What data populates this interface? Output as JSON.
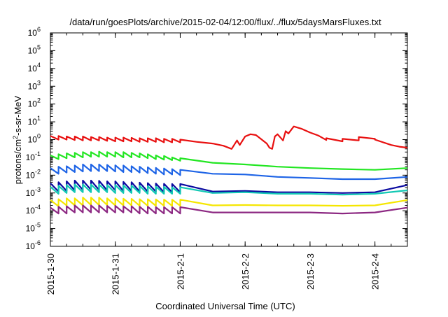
{
  "chart_data": {
    "type": "line",
    "title": "/data/run/goesPlots/archive/2015-02-04/12:00/flux/../flux/5daysMarsFluxes.txt",
    "xlabel": "Coordinated Universal Time (UTC)",
    "ylabel_parts": {
      "base": "protons/cm",
      "sup": "2",
      "rest": "-s-sr-MeV"
    },
    "y_scale": "log",
    "ylim": [
      1e-06,
      1000000.0
    ],
    "y_ticks": [
      {
        "value": 1000000.0,
        "base": "10",
        "exp": "6"
      },
      {
        "value": 100000.0,
        "base": "10",
        "exp": "5"
      },
      {
        "value": 10000.0,
        "base": "10",
        "exp": "4"
      },
      {
        "value": 1000.0,
        "base": "10",
        "exp": "3"
      },
      {
        "value": 100.0,
        "base": "10",
        "exp": "2"
      },
      {
        "value": 10.0,
        "base": "10",
        "exp": "1"
      },
      {
        "value": 1.0,
        "base": "10",
        "exp": "0"
      },
      {
        "value": 0.1,
        "base": "10",
        "exp": "-1"
      },
      {
        "value": 0.01,
        "base": "10",
        "exp": "-2"
      },
      {
        "value": 0.001,
        "base": "10",
        "exp": "-3"
      },
      {
        "value": 0.0001,
        "base": "10",
        "exp": "-4"
      },
      {
        "value": 1e-05,
        "base": "10",
        "exp": "-5"
      },
      {
        "value": 1e-06,
        "base": "10",
        "exp": "-6"
      }
    ],
    "xlim": [
      "2015-01-30T00:00",
      "2015-02-04T12:00"
    ],
    "x_ticks": [
      {
        "value": "2015-01-30T00:00",
        "label": "2015-1-30"
      },
      {
        "value": "2015-01-31T00:00",
        "label": "2015-1-31"
      },
      {
        "value": "2015-02-01T00:00",
        "label": "2015-2-1"
      },
      {
        "value": "2015-02-02T00:00",
        "label": "2015-2-2"
      },
      {
        "value": "2015-02-03T00:00",
        "label": "2015-2-3"
      },
      {
        "value": "2015-02-04T00:00",
        "label": "2015-2-4"
      }
    ],
    "grid": false,
    "legend": "none",
    "series": [
      {
        "color": "#e81010",
        "x": [
          "2015-01-30T00:00",
          "2015-01-30T03:00",
          "2015-01-30T03:00",
          "2015-01-30T06:00",
          "2015-01-30T06:00",
          "2015-01-30T09:00",
          "2015-01-30T09:00",
          "2015-01-30T12:00",
          "2015-01-30T12:00",
          "2015-01-30T15:00",
          "2015-01-30T15:00",
          "2015-01-30T18:00",
          "2015-01-30T18:00",
          "2015-01-30T21:00",
          "2015-01-30T21:00",
          "2015-01-31T00:00",
          "2015-01-31T00:00",
          "2015-01-31T03:00",
          "2015-01-31T03:00",
          "2015-01-31T06:00",
          "2015-01-31T06:00",
          "2015-01-31T09:00",
          "2015-01-31T09:00",
          "2015-01-31T12:00",
          "2015-01-31T12:00",
          "2015-01-31T15:00",
          "2015-01-31T15:00",
          "2015-01-31T18:00",
          "2015-01-31T18:00",
          "2015-01-31T21:00",
          "2015-01-31T21:00",
          "2015-02-01T00:00",
          "2015-02-01T00:00",
          "2015-02-01T06:00",
          "2015-02-01T12:00",
          "2015-02-01T16:00",
          "2015-02-01T19:00",
          "2015-02-01T21:00",
          "2015-02-01T22:00",
          "2015-02-02T00:00",
          "2015-02-02T02:00",
          "2015-02-02T04:00",
          "2015-02-02T05:30",
          "2015-02-02T08:00",
          "2015-02-02T09:00",
          "2015-02-02T10:00",
          "2015-02-02T11:00",
          "2015-02-02T12:00",
          "2015-02-02T14:00",
          "2015-02-02T15:00",
          "2015-02-02T16:00",
          "2015-02-02T18:00",
          "2015-02-02T21:00",
          "2015-02-03T00:00",
          "2015-02-03T03:00",
          "2015-02-03T06:00",
          "2015-02-03T06:00",
          "2015-02-03T12:00",
          "2015-02-03T12:00",
          "2015-02-03T18:00",
          "2015-02-03T18:00",
          "2015-02-04T00:00",
          "2015-02-04T00:00",
          "2015-02-04T06:00",
          "2015-02-04T09:00",
          "2015-02-04T12:00"
        ],
        "y": [
          1.6,
          1.0,
          1.6,
          1.0,
          1.5,
          0.95,
          1.5,
          0.9,
          1.5,
          0.9,
          1.4,
          0.9,
          1.4,
          0.85,
          1.3,
          0.8,
          1.3,
          0.8,
          1.3,
          0.8,
          1.25,
          0.75,
          1.2,
          0.75,
          1.2,
          0.75,
          1.2,
          0.7,
          1.1,
          0.7,
          1.1,
          0.7,
          1.0,
          0.75,
          0.6,
          0.45,
          0.3,
          0.9,
          0.5,
          1.5,
          2.0,
          1.8,
          1.2,
          0.6,
          0.35,
          0.3,
          1.5,
          2.0,
          0.9,
          3.0,
          2.2,
          5.5,
          4.0,
          2.5,
          1.7,
          0.95,
          1.2,
          0.8,
          1.1,
          0.9,
          1.4,
          1.1,
          1.0,
          0.5,
          0.4,
          0.35
        ]
      },
      {
        "color": "#22e622",
        "x": [
          "2015-01-30T00:00",
          "2015-01-30T03:00",
          "2015-01-30T03:00",
          "2015-01-30T06:00",
          "2015-01-30T06:00",
          "2015-01-30T09:00",
          "2015-01-30T09:00",
          "2015-01-30T12:00",
          "2015-01-30T12:00",
          "2015-01-30T15:00",
          "2015-01-30T15:00",
          "2015-01-30T18:00",
          "2015-01-30T18:00",
          "2015-01-30T21:00",
          "2015-01-30T21:00",
          "2015-01-31T00:00",
          "2015-01-31T00:00",
          "2015-01-31T03:00",
          "2015-01-31T03:00",
          "2015-01-31T06:00",
          "2015-01-31T06:00",
          "2015-01-31T09:00",
          "2015-01-31T09:00",
          "2015-01-31T12:00",
          "2015-01-31T12:00",
          "2015-01-31T15:00",
          "2015-01-31T15:00",
          "2015-01-31T18:00",
          "2015-01-31T18:00",
          "2015-01-31T21:00",
          "2015-01-31T21:00",
          "2015-02-01T00:00",
          "2015-02-01T00:00",
          "2015-02-01T12:00",
          "2015-02-02T00:00",
          "2015-02-02T12:00",
          "2015-02-03T00:00",
          "2015-02-03T12:00",
          "2015-02-04T00:00",
          "2015-02-04T12:00"
        ],
        "y": [
          0.13,
          0.08,
          0.15,
          0.09,
          0.17,
          0.1,
          0.18,
          0.1,
          0.2,
          0.11,
          0.2,
          0.11,
          0.21,
          0.11,
          0.2,
          0.11,
          0.2,
          0.1,
          0.2,
          0.1,
          0.18,
          0.1,
          0.17,
          0.09,
          0.15,
          0.08,
          0.13,
          0.075,
          0.12,
          0.07,
          0.1,
          0.065,
          0.09,
          0.05,
          0.04,
          0.03,
          0.025,
          0.022,
          0.02,
          0.025
        ]
      },
      {
        "color": "#1e64e6",
        "x": [
          "2015-01-30T00:00",
          "2015-01-30T03:00",
          "2015-01-30T03:00",
          "2015-01-30T06:00",
          "2015-01-30T06:00",
          "2015-01-30T09:00",
          "2015-01-30T09:00",
          "2015-01-30T12:00",
          "2015-01-30T12:00",
          "2015-01-30T15:00",
          "2015-01-30T15:00",
          "2015-01-30T18:00",
          "2015-01-30T18:00",
          "2015-01-30T21:00",
          "2015-01-30T21:00",
          "2015-01-31T00:00",
          "2015-01-31T00:00",
          "2015-01-31T03:00",
          "2015-01-31T03:00",
          "2015-01-31T06:00",
          "2015-01-31T06:00",
          "2015-01-31T09:00",
          "2015-01-31T09:00",
          "2015-01-31T12:00",
          "2015-01-31T12:00",
          "2015-01-31T15:00",
          "2015-01-31T15:00",
          "2015-01-31T18:00",
          "2015-01-31T18:00",
          "2015-01-31T21:00",
          "2015-01-31T21:00",
          "2015-02-01T00:00",
          "2015-02-01T00:00",
          "2015-02-01T12:00",
          "2015-02-02T00:00",
          "2015-02-02T12:00",
          "2015-02-03T00:00",
          "2015-02-03T12:00",
          "2015-02-04T00:00",
          "2015-02-04T12:00"
        ],
        "y": [
          0.025,
          0.012,
          0.03,
          0.014,
          0.032,
          0.015,
          0.035,
          0.016,
          0.04,
          0.017,
          0.04,
          0.017,
          0.04,
          0.017,
          0.038,
          0.016,
          0.036,
          0.015,
          0.035,
          0.015,
          0.032,
          0.014,
          0.03,
          0.013,
          0.028,
          0.012,
          0.026,
          0.011,
          0.024,
          0.011,
          0.022,
          0.01,
          0.02,
          0.012,
          0.011,
          0.008,
          0.007,
          0.006,
          0.006,
          0.008
        ]
      },
      {
        "color": "#0a0aa0",
        "x": [
          "2015-01-30T00:00",
          "2015-01-30T03:00",
          "2015-01-30T03:00",
          "2015-01-30T06:00",
          "2015-01-30T06:00",
          "2015-01-30T09:00",
          "2015-01-30T09:00",
          "2015-01-30T12:00",
          "2015-01-30T12:00",
          "2015-01-30T15:00",
          "2015-01-30T15:00",
          "2015-01-30T18:00",
          "2015-01-30T18:00",
          "2015-01-30T21:00",
          "2015-01-30T21:00",
          "2015-01-31T00:00",
          "2015-01-31T00:00",
          "2015-01-31T03:00",
          "2015-01-31T03:00",
          "2015-01-31T06:00",
          "2015-01-31T06:00",
          "2015-01-31T09:00",
          "2015-01-31T09:00",
          "2015-01-31T12:00",
          "2015-01-31T12:00",
          "2015-01-31T15:00",
          "2015-01-31T15:00",
          "2015-01-31T18:00",
          "2015-01-31T18:00",
          "2015-01-31T21:00",
          "2015-01-31T21:00",
          "2015-02-01T00:00",
          "2015-02-01T00:00",
          "2015-02-01T12:00",
          "2015-02-02T00:00",
          "2015-02-02T12:00",
          "2015-02-03T00:00",
          "2015-02-03T12:00",
          "2015-02-04T00:00",
          "2015-02-04T12:00"
        ],
        "y": [
          0.0035,
          0.0012,
          0.004,
          0.0013,
          0.0045,
          0.0014,
          0.005,
          0.0015,
          0.005,
          0.0015,
          0.005,
          0.0015,
          0.0048,
          0.0014,
          0.0045,
          0.0014,
          0.0045,
          0.0013,
          0.0042,
          0.0013,
          0.004,
          0.0012,
          0.0038,
          0.0012,
          0.0036,
          0.0012,
          0.0034,
          0.0011,
          0.0033,
          0.0011,
          0.0032,
          0.0011,
          0.0032,
          0.0012,
          0.0013,
          0.0011,
          0.0011,
          0.001,
          0.0011,
          0.0028
        ]
      },
      {
        "color": "#12c8b4",
        "x": [
          "2015-01-30T00:00",
          "2015-01-30T03:00",
          "2015-01-30T03:00",
          "2015-01-30T06:00",
          "2015-01-30T06:00",
          "2015-01-30T09:00",
          "2015-01-30T09:00",
          "2015-01-30T12:00",
          "2015-01-30T12:00",
          "2015-01-30T15:00",
          "2015-01-30T15:00",
          "2015-01-30T18:00",
          "2015-01-30T18:00",
          "2015-01-30T21:00",
          "2015-01-30T21:00",
          "2015-01-31T00:00",
          "2015-01-31T00:00",
          "2015-01-31T03:00",
          "2015-01-31T03:00",
          "2015-01-31T06:00",
          "2015-01-31T06:00",
          "2015-01-31T09:00",
          "2015-01-31T09:00",
          "2015-01-31T12:00",
          "2015-01-31T12:00",
          "2015-01-31T15:00",
          "2015-01-31T15:00",
          "2015-01-31T18:00",
          "2015-01-31T18:00",
          "2015-01-31T21:00",
          "2015-01-31T21:00",
          "2015-02-01T00:00",
          "2015-02-01T00:00",
          "2015-02-01T12:00",
          "2015-02-02T00:00",
          "2015-02-02T12:00",
          "2015-02-03T00:00",
          "2015-02-03T12:00",
          "2015-02-04T00:00",
          "2015-02-04T12:00"
        ],
        "y": [
          0.0022,
          0.0009,
          0.0025,
          0.001,
          0.0028,
          0.0011,
          0.003,
          0.0011,
          0.003,
          0.0011,
          0.003,
          0.0011,
          0.003,
          0.0011,
          0.0028,
          0.001,
          0.0028,
          0.001,
          0.0027,
          0.001,
          0.0026,
          0.001,
          0.0025,
          0.0009,
          0.0024,
          0.0009,
          0.0023,
          0.0009,
          0.0022,
          0.0009,
          0.0021,
          0.0009,
          0.0021,
          0.001,
          0.0011,
          0.0009,
          0.0009,
          0.0008,
          0.0009,
          0.0014
        ]
      },
      {
        "color": "#f5e600",
        "x": [
          "2015-01-30T00:00",
          "2015-01-30T03:00",
          "2015-01-30T03:00",
          "2015-01-30T06:00",
          "2015-01-30T06:00",
          "2015-01-30T09:00",
          "2015-01-30T09:00",
          "2015-01-30T12:00",
          "2015-01-30T12:00",
          "2015-01-30T15:00",
          "2015-01-30T15:00",
          "2015-01-30T18:00",
          "2015-01-30T18:00",
          "2015-01-30T21:00",
          "2015-01-30T21:00",
          "2015-01-31T00:00",
          "2015-01-31T00:00",
          "2015-01-31T03:00",
          "2015-01-31T03:00",
          "2015-01-31T06:00",
          "2015-01-31T06:00",
          "2015-01-31T09:00",
          "2015-01-31T09:00",
          "2015-01-31T12:00",
          "2015-01-31T12:00",
          "2015-01-31T15:00",
          "2015-01-31T15:00",
          "2015-01-31T18:00",
          "2015-01-31T18:00",
          "2015-01-31T21:00",
          "2015-01-31T21:00",
          "2015-02-01T00:00",
          "2015-02-01T00:00",
          "2015-02-01T12:00",
          "2015-02-02T00:00",
          "2015-02-02T12:00",
          "2015-02-03T00:00",
          "2015-02-03T12:00",
          "2015-02-04T00:00",
          "2015-02-04T12:00"
        ],
        "y": [
          0.0004,
          0.00018,
          0.00045,
          0.0002,
          0.0005,
          0.0002,
          0.0005,
          0.0002,
          0.00055,
          0.00021,
          0.00055,
          0.00021,
          0.00055,
          0.00021,
          0.0005,
          0.0002,
          0.0005,
          0.0002,
          0.00048,
          0.0002,
          0.00047,
          0.00019,
          0.00045,
          0.00019,
          0.00045,
          0.00019,
          0.00044,
          0.00019,
          0.00043,
          0.00019,
          0.00042,
          0.00019,
          0.00042,
          0.0002,
          0.00021,
          0.0002,
          0.0002,
          0.00019,
          0.0002,
          0.0004
        ]
      },
      {
        "color": "#8c2882",
        "x": [
          "2015-01-30T00:00",
          "2015-01-30T03:00",
          "2015-01-30T03:00",
          "2015-01-30T06:00",
          "2015-01-30T06:00",
          "2015-01-30T09:00",
          "2015-01-30T09:00",
          "2015-01-30T12:00",
          "2015-01-30T12:00",
          "2015-01-30T15:00",
          "2015-01-30T15:00",
          "2015-01-30T18:00",
          "2015-01-30T18:00",
          "2015-01-30T21:00",
          "2015-01-30T21:00",
          "2015-01-31T00:00",
          "2015-01-31T00:00",
          "2015-01-31T03:00",
          "2015-01-31T03:00",
          "2015-01-31T06:00",
          "2015-01-31T06:00",
          "2015-01-31T09:00",
          "2015-01-31T09:00",
          "2015-01-31T12:00",
          "2015-01-31T12:00",
          "2015-01-31T15:00",
          "2015-01-31T15:00",
          "2015-01-31T18:00",
          "2015-01-31T18:00",
          "2015-01-31T21:00",
          "2015-01-31T21:00",
          "2015-02-01T00:00",
          "2015-02-01T00:00",
          "2015-02-01T12:00",
          "2015-02-02T00:00",
          "2015-02-02T12:00",
          "2015-02-03T00:00",
          "2015-02-03T12:00",
          "2015-02-04T00:00",
          "2015-02-04T12:00"
        ],
        "y": [
          0.00015,
          7e-05,
          0.00017,
          7e-05,
          0.00018,
          8e-05,
          0.0002,
          8e-05,
          0.0002,
          8e-05,
          0.0002,
          8e-05,
          0.0002,
          8e-05,
          0.00019,
          8e-05,
          0.00019,
          8e-05,
          0.00018,
          8e-05,
          0.00018,
          7e-05,
          0.00017,
          7e-05,
          0.00017,
          7e-05,
          0.00016,
          7e-05,
          0.00016,
          7e-05,
          0.00016,
          7e-05,
          0.00016,
          8e-05,
          8e-05,
          8e-05,
          8e-05,
          7e-05,
          8e-05,
          0.00015
        ]
      }
    ]
  }
}
